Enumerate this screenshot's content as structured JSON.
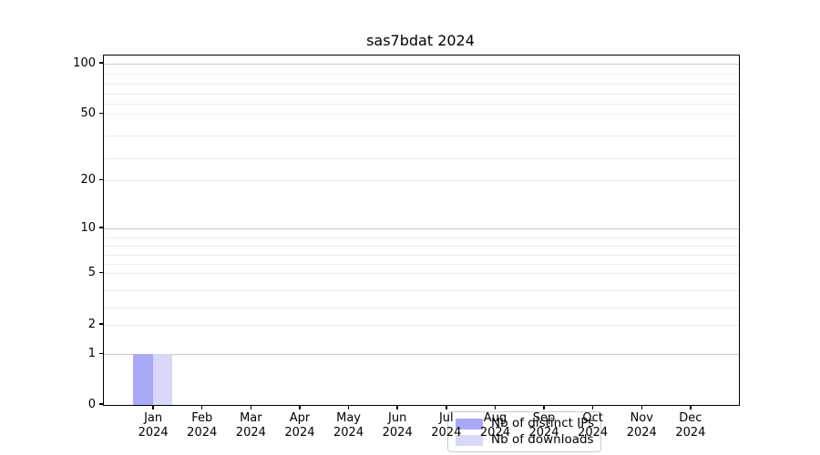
{
  "title": "sas7bdat 2024",
  "colors": {
    "distinct_ips": "#a9a9f7",
    "downloads": "#d8d8f8",
    "major_grid": "#c9c9c9",
    "minor_grid": "#ececec",
    "axis": "#000000",
    "legend_border": "#cccccc"
  },
  "legend": {
    "items": [
      {
        "label": "Nb of distinct IPs",
        "color": "#a9a9f7"
      },
      {
        "label": "Nb of downloads",
        "color": "#d8d8f8"
      }
    ]
  },
  "chart_data": {
    "type": "bar",
    "title": "sas7bdat 2024",
    "categories": [
      {
        "month": "Jan",
        "year": "2024"
      },
      {
        "month": "Feb",
        "year": "2024"
      },
      {
        "month": "Mar",
        "year": "2024"
      },
      {
        "month": "Apr",
        "year": "2024"
      },
      {
        "month": "May",
        "year": "2024"
      },
      {
        "month": "Jun",
        "year": "2024"
      },
      {
        "month": "Jul",
        "year": "2024"
      },
      {
        "month": "Aug",
        "year": "2024"
      },
      {
        "month": "Sep",
        "year": "2024"
      },
      {
        "month": "Oct",
        "year": "2024"
      },
      {
        "month": "Nov",
        "year": "2024"
      },
      {
        "month": "Dec",
        "year": "2024"
      }
    ],
    "series": [
      {
        "name": "Nb of distinct IPs",
        "color": "#a9a9f7",
        "values": [
          1,
          0,
          0,
          0,
          0,
          0,
          0,
          0,
          0,
          0,
          0,
          0
        ]
      },
      {
        "name": "Nb of downloads",
        "color": "#d8d8f8",
        "values": [
          1,
          0,
          0,
          0,
          0,
          0,
          0,
          0,
          0,
          0,
          0,
          0
        ]
      }
    ],
    "xlabel": "",
    "ylabel": "",
    "y_axis": {
      "scale": "log-like",
      "tick_labels": [
        100,
        50,
        20,
        10,
        5,
        2,
        1,
        0
      ],
      "major_gridlines": [
        1,
        10,
        100
      ],
      "labeled_light_gridlines": [
        2,
        5,
        20,
        50
      ],
      "minor_gridlines": [
        3,
        4,
        6,
        7,
        8,
        9,
        30,
        40,
        60,
        70,
        80,
        90
      ],
      "range": [
        0,
        100
      ]
    },
    "grid": true,
    "legend_position": "lower center"
  }
}
